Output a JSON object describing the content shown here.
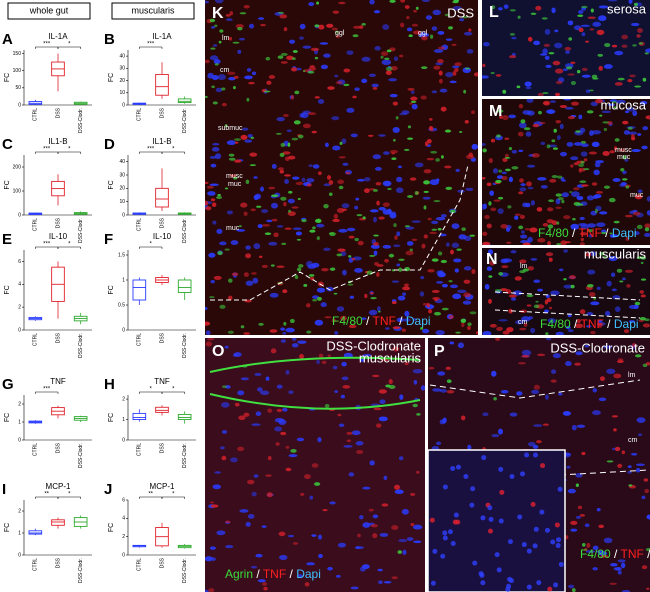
{
  "header": {
    "left": "whole gut",
    "right": "muscularis"
  },
  "chart_data": [
    {
      "type": "box",
      "letter": "A",
      "title": "IL-1A",
      "ylabel": "FC",
      "categories": [
        "CTRL",
        "DSS",
        "DSS-Clodr."
      ],
      "ylim": [
        0,
        160
      ],
      "yticks": [
        0,
        50,
        100,
        150
      ],
      "boxes": [
        {
          "min": 0,
          "q1": 2,
          "median": 5,
          "q3": 10,
          "max": 15
        },
        {
          "min": 40,
          "q1": 85,
          "median": 105,
          "q3": 125,
          "max": 150
        },
        {
          "min": 0,
          "q1": 2,
          "median": 5,
          "q3": 8,
          "max": 10
        }
      ],
      "annotations": [
        "***",
        "*"
      ]
    },
    {
      "type": "box",
      "letter": "B",
      "title": "IL-1A",
      "ylabel": "FC",
      "categories": [
        "CTRL",
        "DSS",
        "DSS-Clodr."
      ],
      "ylim": [
        0,
        45
      ],
      "yticks": [
        0,
        10,
        20,
        30,
        40
      ],
      "boxes": [
        {
          "min": 0,
          "q1": 0.5,
          "median": 1,
          "q3": 1.5,
          "max": 2
        },
        {
          "min": 5,
          "q1": 8,
          "median": 15,
          "q3": 25,
          "max": 35
        },
        {
          "min": 1,
          "q1": 2,
          "median": 3,
          "q3": 5,
          "max": 7
        }
      ],
      "annotations": [
        "***"
      ]
    },
    {
      "type": "box",
      "letter": "C",
      "title": "IL1-B",
      "ylabel": "FC",
      "categories": [
        "CTRL",
        "DSS",
        "DSS-Clodr."
      ],
      "ylim": [
        0,
        250
      ],
      "yticks": [
        0,
        100,
        200
      ],
      "boxes": [
        {
          "min": 0,
          "q1": 2,
          "median": 5,
          "q3": 8,
          "max": 10
        },
        {
          "min": 40,
          "q1": 80,
          "median": 110,
          "q3": 140,
          "max": 170
        },
        {
          "min": 0,
          "q1": 3,
          "median": 6,
          "q3": 10,
          "max": 15
        }
      ],
      "annotations": [
        "***",
        "*"
      ]
    },
    {
      "type": "box",
      "letter": "D",
      "title": "IL1-B",
      "ylabel": "FC",
      "categories": [
        "CTRL",
        "DSS",
        "DSS-Clodr."
      ],
      "ylim": [
        0,
        45
      ],
      "yticks": [
        0,
        10,
        20,
        30,
        40
      ],
      "boxes": [
        {
          "min": 0,
          "q1": 0.5,
          "median": 1,
          "q3": 1.5,
          "max": 2
        },
        {
          "min": 3,
          "q1": 6,
          "median": 12,
          "q3": 20,
          "max": 35
        },
        {
          "min": 0,
          "q1": 0.5,
          "median": 1,
          "q3": 1.5,
          "max": 2
        }
      ],
      "annotations": [
        "***",
        "*"
      ]
    },
    {
      "type": "box",
      "letter": "E",
      "title": "IL-10",
      "ylabel": "FC",
      "categories": [
        "CTRL",
        "DSS",
        "DSS-Clodr."
      ],
      "ylim": [
        0,
        7
      ],
      "yticks": [
        0,
        2,
        4,
        6
      ],
      "boxes": [
        {
          "min": 0.8,
          "q1": 0.9,
          "median": 1,
          "q3": 1.1,
          "max": 1.2
        },
        {
          "min": 1,
          "q1": 2.5,
          "median": 4,
          "q3": 5.5,
          "max": 6
        },
        {
          "min": 0.5,
          "q1": 0.8,
          "median": 1,
          "q3": 1.2,
          "max": 1.5
        }
      ],
      "annotations": [
        "***",
        "*"
      ]
    },
    {
      "type": "box",
      "letter": "F",
      "title": "IL-10",
      "ylabel": "FC",
      "categories": [
        "CTRL",
        "DSS",
        "DSS-Clodr."
      ],
      "ylim": [
        0,
        1.6
      ],
      "yticks": [
        0,
        0.5,
        1,
        1.5
      ],
      "boxes": [
        {
          "min": 0.5,
          "q1": 0.6,
          "median": 0.85,
          "q3": 1,
          "max": 1.05
        },
        {
          "min": 0.9,
          "q1": 0.95,
          "median": 1,
          "q3": 1.05,
          "max": 1.1
        },
        {
          "min": 0.6,
          "q1": 0.75,
          "median": 0.85,
          "q3": 1,
          "max": 1.05
        }
      ],
      "annotations": [
        "*"
      ]
    },
    {
      "type": "box",
      "letter": "G",
      "title": "TNF",
      "ylabel": "FC",
      "categories": [
        "CTRL",
        "DSS",
        "DSS-Clodr."
      ],
      "ylim": [
        0,
        2.5
      ],
      "yticks": [
        0,
        1,
        2
      ],
      "boxes": [
        {
          "min": 0.9,
          "q1": 0.95,
          "median": 1,
          "q3": 1.05,
          "max": 1.1
        },
        {
          "min": 1.2,
          "q1": 1.4,
          "median": 1.6,
          "q3": 1.8,
          "max": 1.9
        },
        {
          "min": 1,
          "q1": 1.1,
          "median": 1.2,
          "q3": 1.3,
          "max": 1.35
        }
      ],
      "annotations": [
        "***"
      ]
    },
    {
      "type": "box",
      "letter": "H",
      "title": "TNF",
      "ylabel": "FC",
      "categories": [
        "CTRL",
        "DSS",
        "DSS-Clodr."
      ],
      "ylim": [
        0,
        2.2
      ],
      "yticks": [
        0,
        1,
        2
      ],
      "boxes": [
        {
          "min": 0.9,
          "q1": 1,
          "median": 1.1,
          "q3": 1.3,
          "max": 1.5
        },
        {
          "min": 1.2,
          "q1": 1.35,
          "median": 1.45,
          "q3": 1.6,
          "max": 1.7
        },
        {
          "min": 0.8,
          "q1": 1,
          "median": 1.1,
          "q3": 1.25,
          "max": 1.4
        }
      ],
      "annotations": [
        "*",
        "*"
      ]
    },
    {
      "type": "box",
      "letter": "I",
      "title": "MCP-1",
      "ylabel": "FC",
      "categories": [
        "CTRL",
        "DSS",
        "DSS-Clodr."
      ],
      "ylim": [
        0,
        2.5
      ],
      "yticks": [
        0,
        1,
        2
      ],
      "boxes": [
        {
          "min": 0.9,
          "q1": 0.95,
          "median": 1,
          "q3": 1.1,
          "max": 1.2
        },
        {
          "min": 1.2,
          "q1": 1.35,
          "median": 1.5,
          "q3": 1.6,
          "max": 1.7
        },
        {
          "min": 1.2,
          "q1": 1.3,
          "median": 1.5,
          "q3": 1.7,
          "max": 1.8
        }
      ],
      "annotations": [
        "**",
        "*"
      ]
    },
    {
      "type": "box",
      "letter": "J",
      "title": "MCP-1",
      "ylabel": "FC",
      "categories": [
        "CTRL",
        "DSS",
        "DSS-Clodr."
      ],
      "ylim": [
        0,
        6
      ],
      "yticks": [
        0,
        2,
        4,
        6
      ],
      "boxes": [
        {
          "min": 0.8,
          "q1": 0.9,
          "median": 1,
          "q3": 1.05,
          "max": 1.1
        },
        {
          "min": 0.8,
          "q1": 1,
          "median": 2,
          "q3": 3,
          "max": 3.5
        },
        {
          "min": 0.7,
          "q1": 0.8,
          "median": 0.95,
          "q3": 1.05,
          "max": 1.2
        }
      ],
      "annotations": [
        "**",
        "*"
      ]
    }
  ],
  "images": {
    "K": {
      "letter": "K",
      "title": "DSS",
      "labels": [
        "lm",
        "cm",
        "ggl",
        "ggl",
        "submuc",
        "musc",
        "muc",
        "muc"
      ],
      "stain": [
        "F4/80",
        "/",
        "TNF",
        "/",
        "Dapi"
      ]
    },
    "L": {
      "letter": "L",
      "title": "serosa"
    },
    "M": {
      "letter": "M",
      "title": "mucosa",
      "labels": [
        "musc",
        "muc",
        "muc"
      ],
      "stain": [
        "F4/80",
        "/",
        "TNF",
        "/",
        "Dapi"
      ]
    },
    "N": {
      "letter": "N",
      "title": "muscularis",
      "labels": [
        "lm",
        "cm"
      ],
      "stain": [
        "F4/80",
        "/",
        "TNF",
        "/",
        "Dapi"
      ]
    },
    "O": {
      "letter": "O",
      "title": "DSS-Clodronate",
      "subtitle": "muscularis",
      "stain": [
        "Agrin",
        "/",
        "TNF",
        "/",
        "Dapi"
      ]
    },
    "P": {
      "letter": "P",
      "title": "DSS-Clodronate",
      "labels": [
        "lm",
        "cm"
      ],
      "stain": [
        "F4/80",
        "/",
        "TNF",
        "/",
        "Dapi"
      ]
    }
  }
}
